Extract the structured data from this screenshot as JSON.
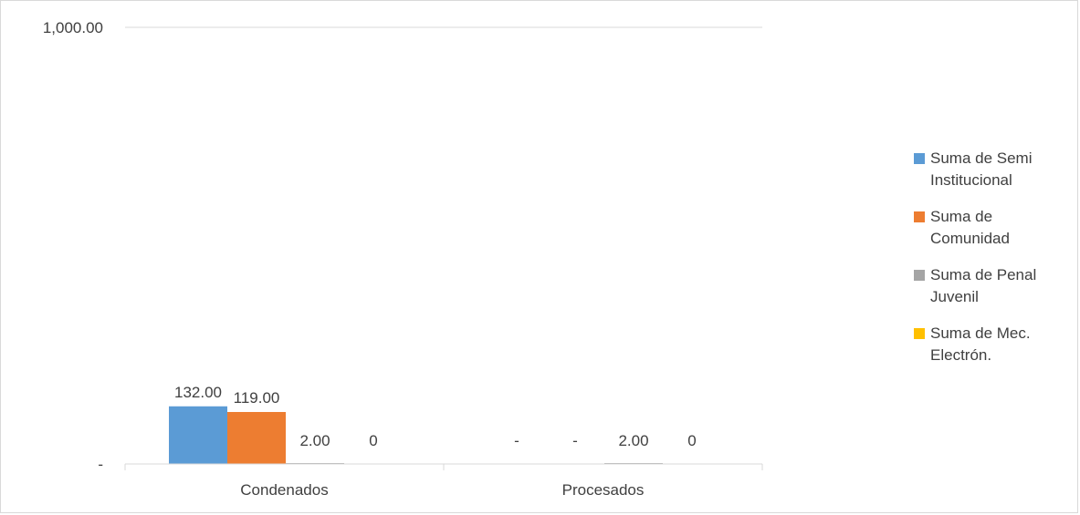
{
  "chart_data": {
    "type": "bar",
    "categories": [
      "Condenados",
      "Procesados"
    ],
    "series": [
      {
        "name": "Suma de Semi Institucional",
        "values": [
          132,
          0
        ],
        "labels": [
          "132.00",
          "-"
        ],
        "color": "#5b9bd5"
      },
      {
        "name": "Suma de Comunidad",
        "values": [
          119,
          0
        ],
        "labels": [
          "119.00",
          "-"
        ],
        "color": "#ed7d31"
      },
      {
        "name": "Suma de Penal Juvenil",
        "values": [
          2,
          2
        ],
        "labels": [
          "2.00",
          "2.00"
        ],
        "color": "#a5a5a5"
      },
      {
        "name": "Suma de Mec. Electrón.",
        "values": [
          0,
          0
        ],
        "labels": [
          "0",
          "0"
        ],
        "color": "#ffc000"
      }
    ],
    "ylim": [
      0,
      1000
    ],
    "yticks": [
      {
        "value": 0,
        "label": "-"
      },
      {
        "value": 1000,
        "label": "1,000.00"
      }
    ],
    "grid": true,
    "legend_position": "right"
  }
}
